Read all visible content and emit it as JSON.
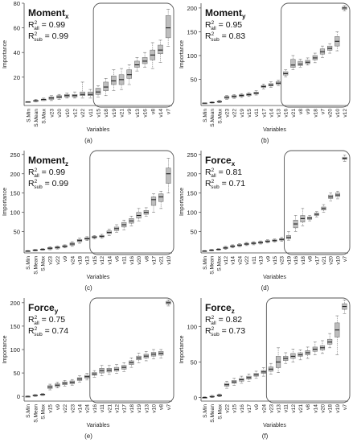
{
  "chart_data": [
    {
      "type": "box",
      "panel_label": "(a)",
      "title_base": "Moment",
      "title_sub": "x",
      "r2_all": "0.99",
      "r2_sub": "0.99",
      "ylabel": "Importance",
      "xlabel": "Variables",
      "yticks": [
        20,
        40,
        60,
        80
      ],
      "ylim": [
        -3,
        80
      ],
      "categories": [
        "S.Min",
        "S.Mean",
        "S.Max",
        "v23",
        "v20",
        "v10",
        "v12",
        "v22",
        "v11",
        "v15",
        "v18",
        "v19",
        "v21",
        "v9",
        "v13",
        "v16",
        "v8",
        "v14",
        "v7"
      ],
      "medians": [
        0,
        1,
        2,
        3,
        4,
        5,
        5,
        6,
        6,
        8,
        12,
        17,
        18,
        22,
        30,
        33,
        38,
        42,
        60
      ],
      "q1": [
        0,
        1,
        1,
        2,
        3,
        4,
        4,
        5,
        5,
        6,
        9,
        14,
        14,
        19,
        28,
        31,
        34,
        39,
        52
      ],
      "q3": [
        0,
        1,
        2,
        4,
        5,
        6,
        6,
        8,
        8,
        11,
        16,
        21,
        22,
        26,
        33,
        36,
        42,
        46,
        70
      ],
      "wlo": [
        0,
        0,
        1,
        1,
        2,
        3,
        3,
        3,
        3,
        4,
        5,
        9,
        10,
        14,
        25,
        28,
        27,
        32,
        45
      ],
      "whi": [
        0,
        2,
        3,
        5,
        6,
        7,
        8,
        16,
        10,
        13,
        19,
        26,
        27,
        30,
        36,
        40,
        48,
        50,
        75
      ],
      "highlight_from": "v15"
    },
    {
      "type": "box",
      "panel_label": "(b)",
      "title_base": "Moment",
      "title_sub": "y",
      "r2_all": "0.95",
      "r2_sub": "0.83",
      "ylabel": "Importance",
      "xlabel": "Variables",
      "yticks": [
        50,
        100,
        150,
        200
      ],
      "ylim": [
        -5,
        210
      ],
      "categories": [
        "S.Min",
        "S.Mean",
        "S.Max",
        "v23",
        "v22",
        "v19",
        "v15",
        "v11",
        "v17",
        "v14",
        "v13",
        "v16",
        "v21",
        "v8",
        "v9",
        "v18",
        "v7",
        "v20",
        "v10",
        "v12"
      ],
      "medians": [
        0,
        1,
        3,
        12,
        14,
        16,
        18,
        21,
        35,
        38,
        42,
        62,
        80,
        82,
        86,
        95,
        108,
        115,
        130,
        200
      ],
      "q1": [
        0,
        1,
        2,
        10,
        12,
        14,
        16,
        19,
        33,
        36,
        40,
        59,
        75,
        79,
        83,
        91,
        103,
        111,
        120,
        197
      ],
      "q3": [
        0,
        2,
        4,
        14,
        16,
        18,
        20,
        23,
        37,
        41,
        45,
        66,
        92,
        88,
        90,
        100,
        114,
        120,
        140,
        202
      ],
      "wlo": [
        0,
        0,
        1,
        8,
        10,
        12,
        14,
        17,
        30,
        33,
        37,
        55,
        70,
        75,
        80,
        85,
        96,
        105,
        110,
        194
      ],
      "whi": [
        0,
        3,
        6,
        16,
        18,
        20,
        22,
        26,
        40,
        45,
        48,
        70,
        100,
        92,
        95,
        105,
        120,
        125,
        150,
        205
      ],
      "highlight_from": "v16"
    },
    {
      "type": "box",
      "panel_label": "(c)",
      "title_base": "Moment",
      "title_sub": "z",
      "r2_all": "0.99",
      "r2_sub": "0.99",
      "ylabel": "Importance",
      "xlabel": "Variables",
      "yticks": [
        50,
        100,
        150,
        200,
        250
      ],
      "ylim": [
        -5,
        260
      ],
      "categories": [
        "S.Min",
        "S.Mean",
        "S.Max",
        "v23",
        "v22",
        "v9",
        "v24",
        "v18",
        "v13",
        "v15",
        "v12",
        "v14",
        "v6",
        "v11",
        "v16",
        "v20",
        "v8",
        "v17",
        "v21",
        "v10"
      ],
      "medians": [
        0,
        2,
        4,
        7,
        9,
        12,
        18,
        27,
        32,
        36,
        38,
        48,
        58,
        68,
        78,
        92,
        100,
        133,
        140,
        200
      ],
      "q1": [
        0,
        1,
        3,
        5,
        7,
        10,
        15,
        24,
        30,
        34,
        36,
        45,
        53,
        62,
        72,
        85,
        95,
        118,
        128,
        175
      ],
      "q3": [
        0,
        3,
        5,
        9,
        11,
        14,
        21,
        30,
        34,
        38,
        40,
        52,
        62,
        74,
        84,
        100,
        105,
        140,
        148,
        215
      ],
      "wlo": [
        0,
        0,
        2,
        3,
        5,
        8,
        12,
        20,
        27,
        31,
        33,
        40,
        48,
        55,
        65,
        78,
        90,
        100,
        110,
        150
      ],
      "whi": [
        1,
        4,
        6,
        11,
        13,
        16,
        24,
        33,
        37,
        40,
        43,
        56,
        68,
        80,
        90,
        110,
        112,
        148,
        155,
        240
      ],
      "highlight_from": "v15"
    },
    {
      "type": "box",
      "panel_label": "(d)",
      "title_base": "Force",
      "title_sub": "x",
      "r2_all": "0.81",
      "r2_sub": "0.71",
      "ylabel": "Importance",
      "xlabel": "Variables",
      "yticks": [
        50,
        100,
        150,
        200,
        250
      ],
      "ylim": [
        -5,
        260
      ],
      "categories": [
        "S.Min",
        "S.Mean",
        "S.Max",
        "v12",
        "v14",
        "v24",
        "v22",
        "v11",
        "v13",
        "v9",
        "v15",
        "v23",
        "v19",
        "v16",
        "v18",
        "v8",
        "v17",
        "v21",
        "v20",
        "v10",
        "v7"
      ],
      "medians": [
        0,
        2,
        4,
        8,
        12,
        15,
        18,
        20,
        22,
        25,
        27,
        30,
        35,
        70,
        84,
        85,
        95,
        110,
        140,
        145,
        240
      ],
      "q1": [
        0,
        1,
        3,
        6,
        10,
        13,
        16,
        18,
        20,
        23,
        25,
        28,
        32,
        60,
        75,
        82,
        92,
        106,
        136,
        141,
        237
      ],
      "q3": [
        0,
        3,
        5,
        10,
        14,
        17,
        20,
        22,
        24,
        27,
        29,
        32,
        40,
        80,
        92,
        88,
        98,
        114,
        145,
        150,
        243
      ],
      "wlo": [
        0,
        0,
        2,
        4,
        8,
        11,
        14,
        16,
        18,
        21,
        23,
        25,
        28,
        50,
        65,
        78,
        88,
        100,
        130,
        135,
        232
      ],
      "whi": [
        1,
        4,
        6,
        12,
        16,
        19,
        22,
        24,
        26,
        29,
        31,
        35,
        50,
        92,
        110,
        92,
        102,
        120,
        150,
        155,
        248
      ],
      "highlight_from": "v19"
    },
    {
      "type": "box",
      "panel_label": "(e)",
      "title_base": "Force",
      "title_sub": "y",
      "r2_all": "0.75",
      "r2_sub": "0.74",
      "ylabel": "Importance",
      "xlabel": "Variables",
      "yticks": [
        0,
        50,
        100,
        150,
        200
      ],
      "ylim": [
        -10,
        210
      ],
      "categories": [
        "S.Min",
        "S.Mean",
        "S.Max",
        "v15",
        "v9",
        "v22",
        "v23",
        "v14",
        "v24",
        "v16",
        "v11",
        "v21",
        "v12",
        "v17",
        "v18",
        "v19",
        "v13",
        "v10",
        "v8",
        "v7"
      ],
      "medians": [
        0,
        2,
        4,
        20,
        24,
        28,
        30,
        37,
        42,
        48,
        55,
        56,
        58,
        62,
        72,
        82,
        86,
        90,
        92,
        200
      ],
      "q1": [
        0,
        1,
        3,
        17,
        21,
        25,
        27,
        34,
        39,
        45,
        50,
        52,
        54,
        58,
        68,
        78,
        82,
        86,
        88,
        197
      ],
      "q3": [
        0,
        3,
        5,
        23,
        27,
        31,
        33,
        40,
        45,
        51,
        60,
        60,
        62,
        66,
        76,
        86,
        90,
        94,
        96,
        203
      ],
      "wlo": [
        0,
        0,
        2,
        14,
        18,
        22,
        24,
        30,
        35,
        41,
        44,
        47,
        49,
        53,
        62,
        72,
        76,
        80,
        82,
        193
      ],
      "whi": [
        1,
        4,
        6,
        26,
        30,
        34,
        36,
        44,
        49,
        55,
        66,
        66,
        68,
        72,
        82,
        92,
        96,
        100,
        100,
        206
      ],
      "highlight_from": "v16"
    },
    {
      "type": "box",
      "panel_label": "(f)",
      "title_base": "Force",
      "title_sub": "z",
      "r2_all": "0.82",
      "r2_sub": "0.73",
      "ylabel": "Importance",
      "xlabel": "Variables",
      "yticks": [
        0,
        50,
        100
      ],
      "ylim": [
        -5,
        140
      ],
      "categories": [
        "S.Min",
        "S.Mean",
        "S.Max",
        "v22",
        "v15",
        "v16",
        "v17",
        "v9",
        "v24",
        "v23",
        "v13",
        "v11",
        "v12",
        "v21",
        "v8",
        "v14",
        "v20",
        "v18",
        "v19",
        "v7"
      ],
      "medians": [
        0,
        1,
        3,
        18,
        22,
        25,
        28,
        32,
        36,
        40,
        50,
        55,
        58,
        60,
        63,
        68,
        70,
        78,
        95,
        128
      ],
      "q1": [
        0,
        1,
        2,
        16,
        20,
        23,
        26,
        30,
        34,
        37,
        42,
        52,
        55,
        58,
        60,
        65,
        67,
        75,
        85,
        124
      ],
      "q3": [
        0,
        2,
        4,
        20,
        24,
        27,
        30,
        34,
        38,
        43,
        58,
        58,
        62,
        63,
        66,
        71,
        73,
        82,
        105,
        132
      ],
      "wlo": [
        0,
        0,
        1,
        13,
        17,
        20,
        23,
        27,
        30,
        33,
        35,
        48,
        50,
        53,
        55,
        60,
        62,
        70,
        60,
        118
      ],
      "whi": [
        1,
        3,
        5,
        23,
        27,
        30,
        33,
        37,
        42,
        48,
        70,
        63,
        68,
        67,
        71,
        78,
        80,
        90,
        115,
        137
      ],
      "highlight_from": "v23"
    }
  ]
}
